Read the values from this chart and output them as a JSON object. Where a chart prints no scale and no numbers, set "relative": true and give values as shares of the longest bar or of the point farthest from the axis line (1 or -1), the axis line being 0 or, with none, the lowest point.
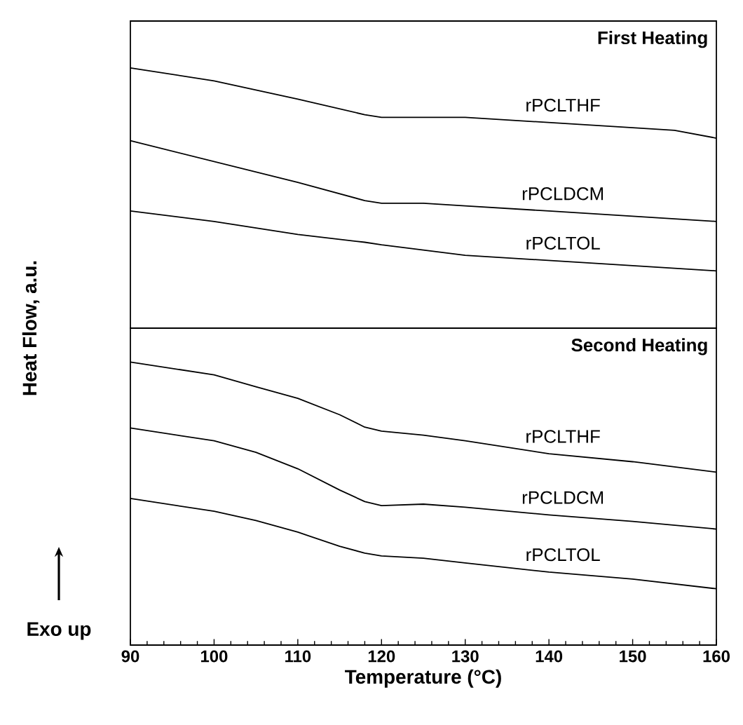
{
  "chart_data": [
    {
      "type": "line",
      "title": "First Heating",
      "ylabel": "Heat Flow, a.u.",
      "relative": true,
      "xlim": [
        90,
        160
      ],
      "x": [
        90,
        100,
        110,
        118,
        120,
        125,
        130,
        140,
        150,
        155,
        160
      ],
      "series": [
        {
          "name": "rPCLTHF",
          "color": "#000000",
          "values": [
            1,
            0.95,
            0.88,
            0.82,
            0.81,
            0.81,
            0.81,
            0.79,
            0.77,
            0.76,
            0.73
          ]
        },
        {
          "name": "rPCLDCM",
          "color": "#000000",
          "values": [
            0.72,
            0.64,
            0.56,
            0.49,
            0.48,
            0.48,
            0.47,
            0.45,
            0.43,
            0.42,
            0.41
          ]
        },
        {
          "name": "rPCLTOL",
          "color": "#000000",
          "values": [
            0.45,
            0.41,
            0.36,
            0.33,
            0.32,
            0.3,
            0.28,
            0.26,
            0.24,
            0.23,
            0.22
          ]
        }
      ]
    },
    {
      "type": "line",
      "title": "Second Heating",
      "xlabel": "Temperature (°C)",
      "relative": true,
      "xlim": [
        90,
        160
      ],
      "xticks": [
        90,
        100,
        110,
        120,
        130,
        140,
        150,
        160
      ],
      "annotations": [
        "Exo up"
      ],
      "x": [
        90,
        100,
        105,
        110,
        115,
        118,
        120,
        125,
        130,
        140,
        150,
        160
      ],
      "series": [
        {
          "name": "rPCLTHF",
          "color": "#000000",
          "values": [
            1,
            0.955,
            0.913,
            0.872,
            0.814,
            0.77,
            0.756,
            0.742,
            0.722,
            0.676,
            0.648,
            0.611
          ]
        },
        {
          "name": "rPCLDCM",
          "color": "#000000",
          "values": [
            0.767,
            0.722,
            0.681,
            0.623,
            0.548,
            0.507,
            0.493,
            0.498,
            0.487,
            0.46,
            0.437,
            0.41
          ]
        },
        {
          "name": "rPCLTOL",
          "color": "#000000",
          "values": [
            0.518,
            0.473,
            0.44,
            0.399,
            0.349,
            0.325,
            0.315,
            0.307,
            0.29,
            0.258,
            0.233,
            0.199
          ]
        }
      ]
    }
  ]
}
